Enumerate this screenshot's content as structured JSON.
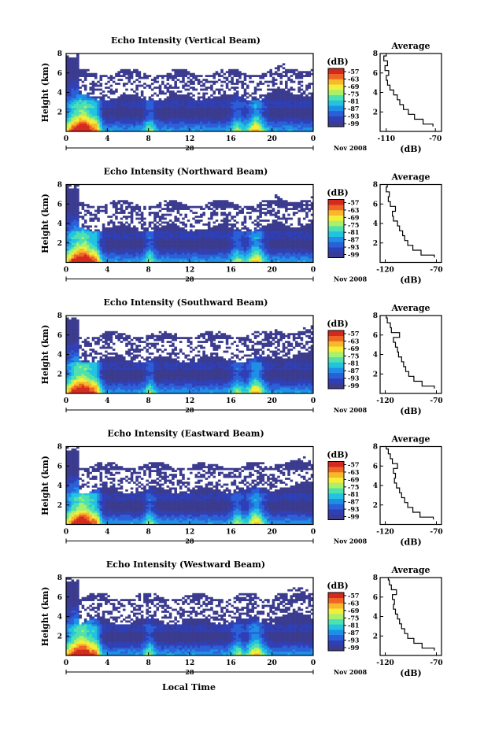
{
  "figure": {
    "xlabel": "Local Time",
    "date_label": "Nov 2008",
    "day_label": "28",
    "colorbar_unit": "(dB)",
    "colorbar_ticks": [
      "-57",
      "-63",
      "-69",
      "-75",
      "-81",
      "-87",
      "-93",
      "-99"
    ],
    "colors": {
      "cmap": [
        "#3b3b8f",
        "#2f3fb5",
        "#2a5fd8",
        "#1f8fe6",
        "#22c3e0",
        "#4fe0b0",
        "#aaf06a",
        "#f2ee3a",
        "#f8b82c",
        "#ee6626",
        "#d42a1e"
      ],
      "axis": "#000000"
    }
  },
  "chart_data": [
    {
      "type": "heatmap",
      "title": "Echo Intensity (Vertical Beam)",
      "ylabel": "Height (km)",
      "x_ticks": [
        "0",
        "4",
        "8",
        "12",
        "16",
        "20",
        "0"
      ],
      "y_ticks": [
        "8",
        "6",
        "4",
        "2"
      ],
      "xlim": [
        0,
        24
      ],
      "ylim": [
        0,
        8
      ],
      "zlim": [
        -99,
        -57
      ],
      "avg_profile": {
        "title": "Average",
        "xlabel": "(dB)",
        "x_ticks": [
          "-110",
          "-70"
        ],
        "y_ticks": [
          "8",
          "6",
          "4",
          "2"
        ],
        "xlim": [
          -115,
          -65
        ],
        "height_km": [
          0.5,
          1.0,
          1.5,
          2.0,
          2.5,
          3.0,
          3.5,
          4.0,
          4.5,
          5.0,
          5.5,
          6.0,
          6.5,
          7.0,
          7.5,
          8.0
        ],
        "db": [
          -72,
          -80,
          -87,
          -92,
          -96,
          -99,
          -101,
          -104,
          -107,
          -109,
          -110,
          -108,
          -111,
          -109,
          -112,
          -110
        ]
      }
    },
    {
      "type": "heatmap",
      "title": "Echo Intensity (Northward Beam)",
      "ylabel": "Height (km)",
      "x_ticks": [
        "0",
        "4",
        "8",
        "12",
        "16",
        "20",
        "0"
      ],
      "y_ticks": [
        "8",
        "6",
        "4",
        "2"
      ],
      "xlim": [
        0,
        24
      ],
      "ylim": [
        0,
        8
      ],
      "zlim": [
        -99,
        -57
      ],
      "avg_profile": {
        "title": "Average",
        "xlabel": "(dB)",
        "x_ticks": [
          "-120",
          "-70"
        ],
        "y_ticks": [
          "8",
          "6",
          "4",
          "2"
        ],
        "xlim": [
          -125,
          -65
        ],
        "height_km": [
          0.5,
          1.0,
          1.5,
          2.0,
          2.5,
          3.0,
          3.5,
          4.0,
          4.5,
          5.0,
          5.5,
          6.0,
          6.5,
          7.0,
          7.5,
          8.0
        ],
        "db": [
          -72,
          -85,
          -93,
          -98,
          -101,
          -103,
          -106,
          -108,
          -112,
          -113,
          -110,
          -115,
          -117,
          -116,
          -119,
          -118
        ]
      }
    },
    {
      "type": "heatmap",
      "title": "Echo Intensity (Southward Beam)",
      "ylabel": "Height (km)",
      "x_ticks": [
        "0",
        "4",
        "8",
        "12",
        "16",
        "20",
        "0"
      ],
      "y_ticks": [
        "8",
        "6",
        "4",
        "2"
      ],
      "xlim": [
        0,
        24
      ],
      "ylim": [
        0,
        8
      ],
      "zlim": [
        -99,
        -57
      ],
      "avg_profile": {
        "title": "Average",
        "xlabel": "(dB)",
        "x_ticks": [
          "-120",
          "-70"
        ],
        "y_ticks": [
          "8",
          "6",
          "4",
          "2"
        ],
        "xlim": [
          -125,
          -65
        ],
        "height_km": [
          0.5,
          1.0,
          1.5,
          2.0,
          2.5,
          3.0,
          3.5,
          4.0,
          4.5,
          5.0,
          5.5,
          6.0,
          6.5,
          7.0,
          7.5,
          8.0
        ],
        "db": [
          -72,
          -84,
          -92,
          -97,
          -100,
          -102,
          -104,
          -107,
          -108,
          -110,
          -112,
          -106,
          -114,
          -115,
          -118,
          -119
        ]
      }
    },
    {
      "type": "heatmap",
      "title": "Echo Intensity (Eastward Beam)",
      "ylabel": "Height (km)",
      "x_ticks": [
        "0",
        "4",
        "8",
        "12",
        "16",
        "20",
        "0"
      ],
      "y_ticks": [
        "8",
        "6",
        "4",
        "2"
      ],
      "xlim": [
        0,
        24
      ],
      "ylim": [
        0,
        8
      ],
      "zlim": [
        -99,
        -57
      ],
      "avg_profile": {
        "title": "Average",
        "xlabel": "(dB)",
        "x_ticks": [
          "-120",
          "-70"
        ],
        "y_ticks": [
          "8",
          "6",
          "4",
          "2"
        ],
        "xlim": [
          -125,
          -65
        ],
        "height_km": [
          0.5,
          1.0,
          1.5,
          2.0,
          2.5,
          3.0,
          3.5,
          4.0,
          4.5,
          5.0,
          5.5,
          6.0,
          6.5,
          7.0,
          7.5,
          8.0
        ],
        "db": [
          -73,
          -86,
          -93,
          -98,
          -101,
          -104,
          -106,
          -109,
          -111,
          -110,
          -112,
          -108,
          -113,
          -115,
          -117,
          -119
        ]
      }
    },
    {
      "type": "heatmap",
      "title": "Echo Intensity (Westward Beam)",
      "ylabel": "Height (km)",
      "x_ticks": [
        "0",
        "4",
        "8",
        "12",
        "16",
        "20",
        "0"
      ],
      "y_ticks": [
        "8",
        "6",
        "4",
        "2"
      ],
      "xlim": [
        0,
        24
      ],
      "ylim": [
        0,
        8
      ],
      "zlim": [
        -99,
        -57
      ],
      "avg_profile": {
        "title": "Average",
        "xlabel": "(dB)",
        "x_ticks": [
          "-120",
          "-70"
        ],
        "y_ticks": [
          "8",
          "6",
          "4",
          "2"
        ],
        "xlim": [
          -125,
          -65
        ],
        "height_km": [
          0.5,
          1.0,
          1.5,
          2.0,
          2.5,
          3.0,
          3.5,
          4.0,
          4.5,
          5.0,
          5.5,
          6.0,
          6.5,
          7.0,
          7.5,
          8.0
        ],
        "db": [
          -72,
          -84,
          -92,
          -98,
          -101,
          -104,
          -106,
          -108,
          -110,
          -112,
          -111,
          -113,
          -109,
          -114,
          -116,
          -117
        ]
      }
    }
  ]
}
